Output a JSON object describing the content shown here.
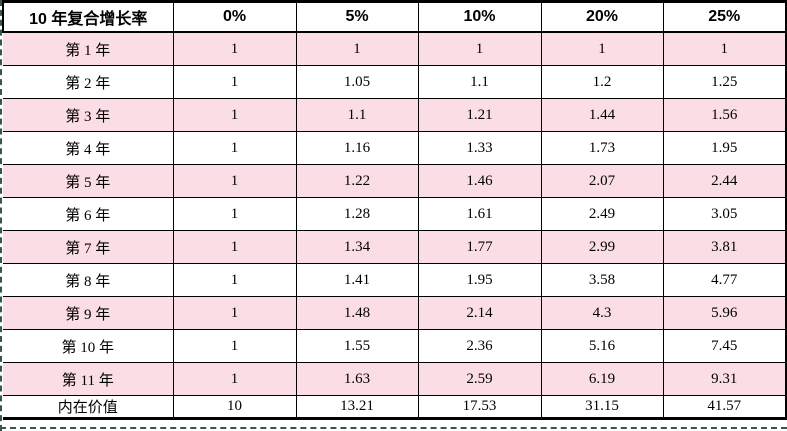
{
  "title": "10 年复合增长率",
  "table": {
    "header": [
      "10 年复合增长率",
      "0%",
      "5%",
      "10%",
      "20%",
      "25%"
    ],
    "rows": [
      {
        "label": "第 1 年",
        "values": [
          "1",
          "1",
          "1",
          "1",
          "1"
        ]
      },
      {
        "label": "第 2 年",
        "values": [
          "1",
          "1.05",
          "1.1",
          "1.2",
          "1.25"
        ]
      },
      {
        "label": "第 3 年",
        "values": [
          "1",
          "1.1",
          "1.21",
          "1.44",
          "1.56"
        ]
      },
      {
        "label": "第 4 年",
        "values": [
          "1",
          "1.16",
          "1.33",
          "1.73",
          "1.95"
        ]
      },
      {
        "label": "第 5 年",
        "values": [
          "1",
          "1.22",
          "1.46",
          "2.07",
          "2.44"
        ]
      },
      {
        "label": "第 6 年",
        "values": [
          "1",
          "1.28",
          "1.61",
          "2.49",
          "3.05"
        ]
      },
      {
        "label": "第 7 年",
        "values": [
          "1",
          "1.34",
          "1.77",
          "2.99",
          "3.81"
        ]
      },
      {
        "label": "第 8 年",
        "values": [
          "1",
          "1.41",
          "1.95",
          "3.58",
          "4.77"
        ]
      },
      {
        "label": "第 9 年",
        "values": [
          "1",
          "1.48",
          "2.14",
          "4.3",
          "5.96"
        ]
      },
      {
        "label": "第 10 年",
        "values": [
          "1",
          "1.55",
          "2.36",
          "5.16",
          "7.45"
        ]
      },
      {
        "label": "第 11 年",
        "values": [
          "1",
          "1.63",
          "2.59",
          "6.19",
          "9.31"
        ]
      },
      {
        "label": "内在价值",
        "values": [
          "10",
          "13.21",
          "17.53",
          "31.15",
          "41.57"
        ]
      }
    ]
  },
  "chart_data": {
    "type": "table",
    "title": "10 年复合增长率",
    "categories": [
      "第 1 年",
      "第 2 年",
      "第 3 年",
      "第 4 年",
      "第 5 年",
      "第 6 年",
      "第 7 年",
      "第 8 年",
      "第 9 年",
      "第 10 年",
      "第 11 年",
      "内在价值"
    ],
    "series": [
      {
        "name": "0%",
        "values": [
          1,
          1,
          1,
          1,
          1,
          1,
          1,
          1,
          1,
          1,
          1,
          10
        ]
      },
      {
        "name": "5%",
        "values": [
          1,
          1.05,
          1.1,
          1.16,
          1.22,
          1.28,
          1.34,
          1.41,
          1.48,
          1.55,
          1.63,
          13.21
        ]
      },
      {
        "name": "10%",
        "values": [
          1,
          1.1,
          1.21,
          1.33,
          1.46,
          1.61,
          1.77,
          1.95,
          2.14,
          2.36,
          2.59,
          17.53
        ]
      },
      {
        "name": "20%",
        "values": [
          1,
          1.2,
          1.44,
          1.73,
          2.07,
          2.49,
          2.99,
          3.58,
          4.3,
          5.16,
          6.19,
          31.15
        ]
      },
      {
        "name": "25%",
        "values": [
          1,
          1.25,
          1.56,
          1.95,
          2.44,
          3.05,
          3.81,
          4.77,
          5.96,
          7.45,
          9.31,
          41.57
        ]
      }
    ]
  },
  "colors": {
    "row_pink": "#FBDEE5",
    "row_white": "#FFFFFF",
    "border": "#000000",
    "page_break_line": "#35584E"
  }
}
